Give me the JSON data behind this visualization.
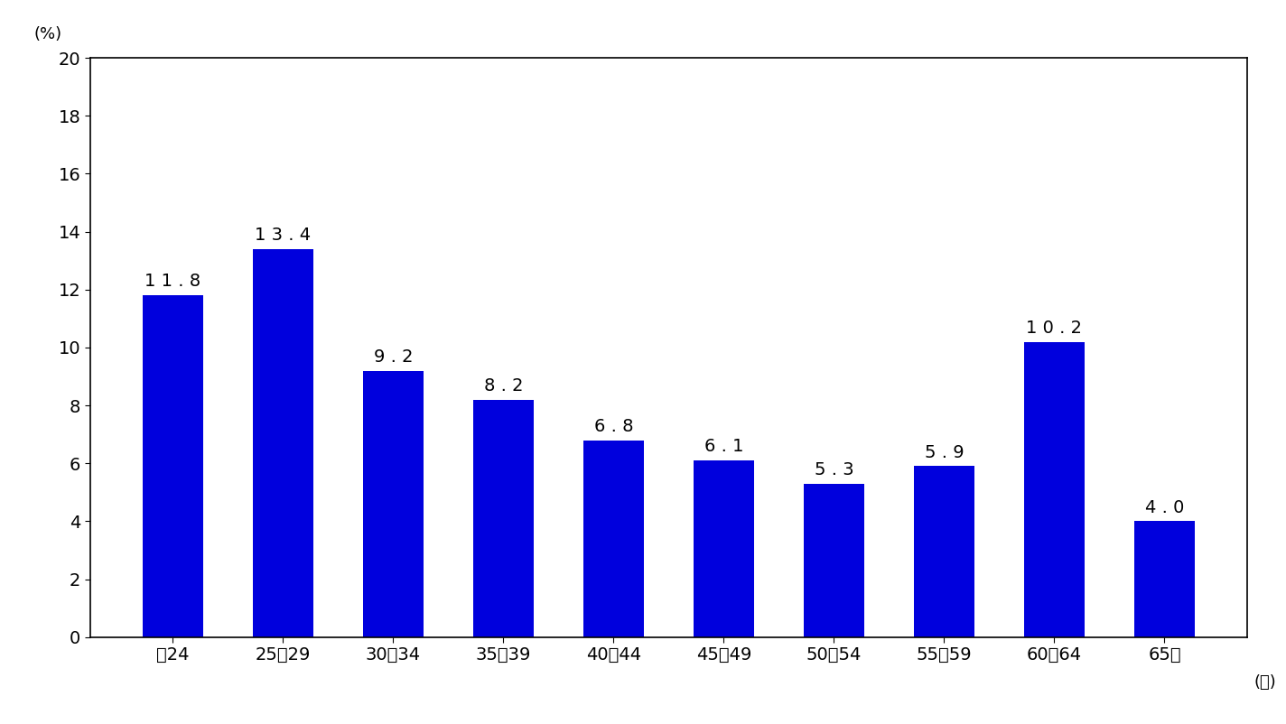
{
  "categories": [
    "〜24",
    "25〜29",
    "30〜34",
    "35〜39",
    "40〜44",
    "45〜49",
    "50〜54",
    "55〜59",
    "60〜64",
    "65〜"
  ],
  "values": [
    11.8,
    13.4,
    9.2,
    8.2,
    6.8,
    6.1,
    5.3,
    5.9,
    10.2,
    4.0
  ],
  "value_labels": [
    "1 1 . 8",
    "1 3 . 4",
    "9 . 2",
    "8 . 2",
    "6 . 8",
    "6 . 1",
    "5 . 3",
    "5 . 9",
    "1 0 . 2",
    "4 . 0"
  ],
  "bar_color": "#0000dd",
  "ylim": [
    0,
    20
  ],
  "yticks": [
    0,
    2,
    4,
    6,
    8,
    10,
    12,
    14,
    16,
    18,
    20
  ],
  "ylabel_unit": "(%)",
  "xlabel_unit": "(歳)",
  "background_color": "#ffffff",
  "label_fontsize": 14,
  "tick_fontsize": 14,
  "unit_fontsize": 13,
  "bar_width": 0.55
}
